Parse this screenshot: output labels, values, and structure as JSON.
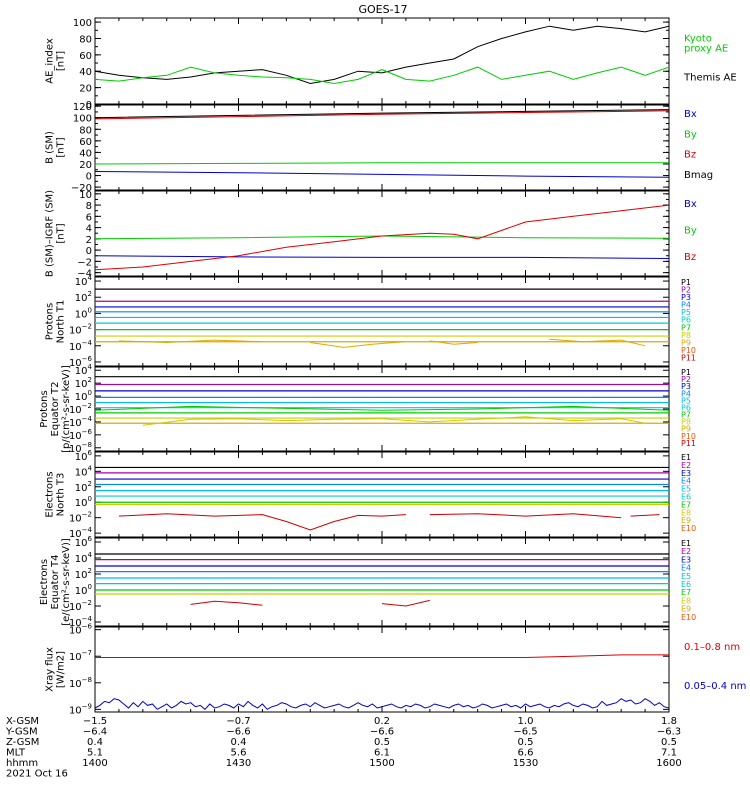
{
  "title": "GOES-17",
  "colors": {
    "black": "#000000",
    "red": "#dd0000",
    "green": "#00cc00",
    "blue": "#0000cc",
    "p_channels": [
      "#000000",
      "#aa00aa",
      "#0000cc",
      "#0088ff",
      "#00bbee",
      "#00cccc",
      "#00cc00",
      "#cccc00",
      "#ddaa00",
      "#ee5500",
      "#cc0000"
    ],
    "e_channels": [
      "#000000",
      "#aa00aa",
      "#0000cc",
      "#0088ff",
      "#00bbee",
      "#00cccc",
      "#00cc00",
      "#cccc00",
      "#ddaa00",
      "#ee5500"
    ]
  },
  "chart_data": [
    {
      "id": "ae",
      "type": "line",
      "ylabel_lines": [
        "AE_index",
        "[nT]"
      ],
      "ylim": [
        0,
        105
      ],
      "yticks": [
        {
          "v": 0,
          "label": "0"
        },
        {
          "v": 20,
          "label": "20"
        },
        {
          "v": 40,
          "label": "40"
        },
        {
          "v": 60,
          "label": "60"
        },
        {
          "v": 80,
          "label": "80"
        },
        {
          "v": 100,
          "label": "100"
        }
      ],
      "legend": [
        {
          "lines": [
            "Kyoto",
            "proxy AE"
          ],
          "color": "green"
        },
        {
          "lines": [
            "Themis AE"
          ],
          "color": "black"
        }
      ],
      "series": [
        {
          "name": "Themis AE",
          "color": "black",
          "t": [
            0,
            5,
            10,
            15,
            20,
            25,
            30,
            35,
            40,
            45,
            50,
            55,
            60,
            65,
            70,
            75,
            80,
            85,
            90,
            95,
            100,
            105,
            110,
            115,
            120
          ],
          "y": [
            40,
            35,
            32,
            30,
            33,
            38,
            40,
            42,
            35,
            25,
            30,
            40,
            38,
            45,
            50,
            55,
            70,
            80,
            88,
            95,
            90,
            95,
            92,
            88,
            95
          ]
        },
        {
          "name": "Kyoto proxy AE",
          "color": "green",
          "t": [
            0,
            5,
            10,
            15,
            20,
            25,
            30,
            35,
            40,
            45,
            50,
            55,
            60,
            65,
            70,
            75,
            80,
            85,
            90,
            95,
            100,
            105,
            110,
            115,
            120
          ],
          "y": [
            30,
            28,
            32,
            35,
            45,
            38,
            35,
            33,
            32,
            30,
            25,
            30,
            42,
            30,
            28,
            35,
            45,
            30,
            35,
            40,
            30,
            38,
            45,
            35,
            45
          ]
        }
      ]
    },
    {
      "id": "bsm",
      "type": "line",
      "ylabel_lines": [
        "B (SM)",
        "[nT]"
      ],
      "ylim": [
        -25,
        122
      ],
      "yticks": [
        {
          "v": -20,
          "label": "−20"
        },
        {
          "v": 0,
          "label": "0"
        },
        {
          "v": 20,
          "label": "20"
        },
        {
          "v": 40,
          "label": "40"
        },
        {
          "v": 60,
          "label": "60"
        },
        {
          "v": 80,
          "label": "80"
        },
        {
          "v": 100,
          "label": "100"
        },
        {
          "v": 120,
          "label": "120"
        }
      ],
      "legend": [
        {
          "lines": [
            "Bx"
          ],
          "color": "blue"
        },
        {
          "lines": [
            "By"
          ],
          "color": "green"
        },
        {
          "lines": [
            "Bz"
          ],
          "color": "red"
        },
        {
          "lines": [
            "Bmag"
          ],
          "color": "black"
        }
      ],
      "series": [
        {
          "name": "Bx",
          "color": "blue",
          "t": [
            0,
            30,
            60,
            90,
            120
          ],
          "y": [
            7,
            5,
            2,
            -1,
            -3
          ]
        },
        {
          "name": "By",
          "color": "green",
          "t": [
            0,
            30,
            60,
            90,
            120
          ],
          "y": [
            20,
            21,
            22,
            22,
            22
          ]
        },
        {
          "name": "Bz",
          "color": "red",
          "t": [
            0,
            30,
            60,
            90,
            120
          ],
          "y": [
            98,
            102,
            106,
            109,
            112
          ]
        },
        {
          "name": "Bmag",
          "color": "black",
          "t": [
            0,
            30,
            60,
            90,
            120
          ],
          "y": [
            100,
            104,
            108,
            111,
            114
          ]
        }
      ]
    },
    {
      "id": "bdiff",
      "type": "line",
      "ylabel_lines": [
        "B (SM)–IGRF (SM)",
        "[nT]"
      ],
      "ylim": [
        -4.6,
        10.5
      ],
      "yticks": [
        {
          "v": -4,
          "label": "−4"
        },
        {
          "v": -2,
          "label": "−2"
        },
        {
          "v": 0,
          "label": "0"
        },
        {
          "v": 2,
          "label": "2"
        },
        {
          "v": 4,
          "label": "4"
        },
        {
          "v": 6,
          "label": "6"
        },
        {
          "v": 8,
          "label": "8"
        },
        {
          "v": 10,
          "label": "10"
        }
      ],
      "legend": [
        {
          "lines": [
            "Bx"
          ],
          "color": "blue"
        },
        {
          "lines": [
            "By"
          ],
          "color": "green"
        },
        {
          "lines": [
            "Bz"
          ],
          "color": "red"
        }
      ],
      "series": [
        {
          "name": "Bx",
          "color": "blue",
          "t": [
            0,
            30,
            60,
            90,
            120
          ],
          "y": [
            -1,
            -1.2,
            -1.3,
            -1.3,
            -1.5
          ]
        },
        {
          "name": "By",
          "color": "green",
          "t": [
            0,
            30,
            60,
            90,
            120
          ],
          "y": [
            2,
            2.2,
            2.5,
            2.2,
            2.1
          ]
        },
        {
          "name": "Bz",
          "color": "red",
          "t": [
            0,
            10,
            20,
            30,
            40,
            50,
            60,
            70,
            75,
            80,
            90,
            100,
            110,
            120
          ],
          "y": [
            -3.5,
            -3,
            -2,
            -1,
            0.5,
            1.5,
            2.5,
            3,
            2.8,
            2,
            5,
            6,
            7,
            8
          ]
        }
      ]
    },
    {
      "id": "p_t1",
      "type": "line",
      "log": true,
      "ylabel_lines": [
        "Protons",
        "North T1"
      ],
      "ylim_exp": [
        -6.5,
        4.5
      ],
      "yticks_exp": [
        4,
        2,
        0,
        -2,
        -4,
        -6
      ],
      "channel_names": [
        "P1",
        "P2",
        "P3",
        "P4",
        "P5",
        "P6",
        "P7",
        "P8",
        "P9",
        "P10",
        "P11"
      ],
      "levels_exp": [
        3.0,
        1.5,
        0.8,
        0.2,
        -0.5,
        -1.2,
        -2.0,
        -2.8,
        -3.5
      ],
      "segments": [
        {
          "color": "#ddaa00",
          "t": [
            5,
            15,
            25,
            35
          ],
          "y_exp": [
            -3.4,
            -3.6,
            -3.3,
            -3.5
          ]
        },
        {
          "color": "#ddaa00",
          "t": [
            45,
            52,
            58,
            65
          ],
          "y_exp": [
            -3.6,
            -4.2,
            -3.8,
            -3.5
          ]
        },
        {
          "color": "#ddaa00",
          "t": [
            70,
            75,
            80
          ],
          "y_exp": [
            -3.4,
            -3.8,
            -3.6
          ]
        },
        {
          "color": "#ddaa00",
          "t": [
            95,
            102,
            110,
            115
          ],
          "y_exp": [
            -3.2,
            -3.5,
            -3.3,
            -4.0
          ]
        }
      ]
    },
    {
      "id": "p_t2",
      "type": "line",
      "log": true,
      "ylabel_lines": [
        "Protons",
        "Equator T2",
        "[p/(cm²-s-sr-keV)]"
      ],
      "ylim_exp": [
        -8.5,
        4.5
      ],
      "yticks_exp": [
        4,
        2,
        0,
        -2,
        -4,
        -6,
        -8
      ],
      "channel_names": [
        "P1",
        "P2",
        "P3",
        "P4",
        "P5",
        "P6",
        "P7",
        "P8",
        "P9",
        "P10",
        "P11"
      ],
      "levels_exp": [
        3.0,
        1.8,
        0.8,
        -0.2,
        -1.0,
        -1.8,
        -2.6,
        -3.4,
        -4.2
      ],
      "segments": [
        {
          "color": "#cccc00",
          "t": [
            10,
            20,
            30,
            40,
            50,
            60,
            70,
            80,
            90,
            100,
            110,
            115
          ],
          "y_exp": [
            -4.5,
            -3.6,
            -3.5,
            -3.8,
            -3.6,
            -3.5,
            -4.0,
            -3.6,
            -3.2,
            -3.8,
            -3.5,
            -4.2
          ]
        },
        {
          "color": "#00cc00",
          "t": [
            0,
            20,
            40,
            60,
            80,
            100,
            120
          ],
          "y_exp": [
            -2.2,
            -1.6,
            -1.9,
            -2.2,
            -2.0,
            -1.6,
            -2.2
          ]
        }
      ]
    },
    {
      "id": "e_t3",
      "type": "line",
      "log": true,
      "ylabel_lines": [
        "Electrons",
        "North T3"
      ],
      "ylim_exp": [
        -4.5,
        6.5
      ],
      "yticks_exp": [
        6,
        4,
        2,
        0,
        -2,
        -4
      ],
      "channel_names": [
        "E1",
        "E2",
        "E3",
        "E4",
        "E5",
        "E6",
        "E7",
        "E8",
        "E9",
        "E10"
      ],
      "levels_exp": [
        4.5,
        3.8,
        3.0,
        2.3,
        1.5,
        0.8,
        0.0,
        -0.3
      ],
      "segments": [
        {
          "color": "#cc0000",
          "t": [
            5,
            15,
            25,
            35,
            40,
            45,
            50,
            55,
            60,
            65
          ],
          "y_exp": [
            -1.8,
            -1.5,
            -1.8,
            -1.6,
            -2.5,
            -3.6,
            -2.5,
            -1.7,
            -1.8,
            -1.6
          ]
        },
        {
          "color": "#cc0000",
          "t": [
            70,
            80,
            90,
            100,
            110
          ],
          "y_exp": [
            -1.6,
            -1.5,
            -1.8,
            -1.5,
            -2.0
          ]
        },
        {
          "color": "#cc0000",
          "t": [
            112,
            118
          ],
          "y_exp": [
            -1.8,
            -1.6
          ]
        }
      ]
    },
    {
      "id": "e_t4",
      "type": "line",
      "log": true,
      "ylabel_lines": [
        "Electrons",
        "Equator T4",
        "[e/(cm²-s-sr-keV)]"
      ],
      "ylim_exp": [
        -4.5,
        6.5
      ],
      "yticks_exp": [
        6,
        4,
        2,
        0,
        -2,
        -4
      ],
      "channel_names": [
        "E1",
        "E2",
        "E3",
        "E4",
        "E5",
        "E6",
        "E7",
        "E8",
        "E9",
        "E10"
      ],
      "levels_exp": [
        4.5,
        3.8,
        3.0,
        2.3,
        1.5,
        0.8,
        0.0,
        -0.5
      ],
      "segments": [
        {
          "color": "#cc0000",
          "t": [
            20,
            25,
            30,
            35
          ],
          "y_exp": [
            -1.8,
            -1.4,
            -1.6,
            -1.9
          ]
        },
        {
          "color": "#cc0000",
          "t": [
            60,
            65,
            70
          ],
          "y_exp": [
            -1.7,
            -2.0,
            -1.3
          ]
        }
      ]
    },
    {
      "id": "xray",
      "type": "line",
      "log": true,
      "ylabel_lines": [
        "Xray flux",
        "[W/m2]"
      ],
      "ylim_exp": [
        -9.1,
        -5.9
      ],
      "yticks_exp": [
        -6,
        -7,
        -8,
        -9
      ],
      "legend": [
        {
          "lines": [
            "0.1–0.8 nm"
          ],
          "color": "red"
        },
        {
          "lines": [
            "0.05–0.4 nm"
          ],
          "color": "blue"
        }
      ],
      "series": [
        {
          "name": "0.1–0.8 nm",
          "color": "red",
          "t": [
            0,
            30,
            60,
            90,
            100,
            110,
            120
          ],
          "y_exp": [
            -7.05,
            -7.05,
            -7.05,
            -7.05,
            -7.0,
            -6.95,
            -6.95
          ]
        }
      ],
      "noisy": {
        "name": "0.05–0.4 nm",
        "color": "blue",
        "t_step": 1,
        "values_exp": [
          -8.95,
          -8.85,
          -8.7,
          -8.75,
          -8.6,
          -8.65,
          -8.8,
          -8.95,
          -8.75,
          -8.9,
          -8.7,
          -8.85,
          -8.8,
          -9.0,
          -8.9,
          -8.8,
          -8.95,
          -8.85,
          -8.7,
          -8.8,
          -8.75,
          -8.9,
          -8.85,
          -9.0,
          -8.8,
          -8.95,
          -8.9,
          -8.8,
          -8.85,
          -8.95,
          -8.8,
          -8.9,
          -8.7,
          -8.85,
          -8.95,
          -8.8,
          -9.0,
          -8.9,
          -8.85,
          -8.75,
          -8.8,
          -8.9,
          -8.95,
          -8.85,
          -8.8,
          -8.9,
          -8.75,
          -8.85,
          -8.95,
          -8.9,
          -8.85,
          -8.8,
          -8.9,
          -8.95,
          -8.85,
          -8.75,
          -8.85,
          -8.9,
          -8.8,
          -8.95,
          -8.9,
          -8.85,
          -8.8,
          -8.9,
          -8.95,
          -8.85,
          -8.9,
          -8.8,
          -8.85,
          -8.95,
          -8.9,
          -8.8,
          -8.85,
          -8.9,
          -8.95,
          -8.85,
          -8.8,
          -8.9,
          -8.85,
          -8.95,
          -8.9,
          -8.8,
          -8.85,
          -8.95,
          -8.9,
          -8.85,
          -8.8,
          -8.9,
          -8.85,
          -8.95,
          -8.8,
          -8.9,
          -8.85,
          -8.8,
          -8.9,
          -8.95,
          -8.85,
          -8.9,
          -8.8,
          -8.75,
          -8.85,
          -8.9,
          -8.8,
          -8.85,
          -8.95,
          -8.9,
          -8.7,
          -8.85,
          -8.8,
          -8.75,
          -8.6,
          -8.7,
          -8.65,
          -8.8,
          -8.75,
          -8.6,
          -8.7,
          -8.85,
          -8.75,
          -8.9,
          -8.95
        ]
      }
    }
  ],
  "time_axis": {
    "tmin": 0,
    "tmax": 120,
    "ticks": [
      0,
      30,
      60,
      90,
      120
    ],
    "rows": [
      {
        "label": "X-GSM",
        "values": [
          "−1.5",
          "−0.7",
          "0.2",
          "1.0",
          "1.8"
        ]
      },
      {
        "label": "Y-GSM",
        "values": [
          "−6.4",
          "−6.6",
          "−6.6",
          "−6.5",
          "−6.3"
        ]
      },
      {
        "label": "Z-GSM",
        "values": [
          "0.4",
          "0.4",
          "0.5",
          "0.5",
          "0.5"
        ]
      },
      {
        "label": "MLT",
        "values": [
          "5.1",
          "5.6",
          "6.1",
          "6.6",
          "7.1"
        ]
      },
      {
        "label": "hhmm",
        "values": [
          "1400",
          "1430",
          "1500",
          "1530",
          "1600"
        ]
      }
    ],
    "date": "2021 Oct 16"
  }
}
